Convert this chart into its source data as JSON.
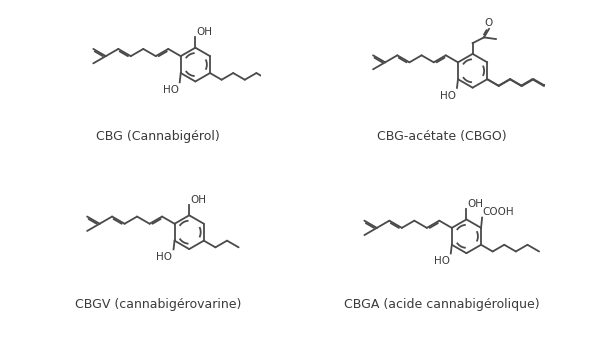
{
  "background_color": "#ffffff",
  "text_color": "#3a3a3a",
  "line_color": "#4a4a4a",
  "line_width": 1.3,
  "labels": {
    "cbg": "CBG (Cannabigérol)",
    "cbgo": "CBG-acétate (CBGO)",
    "cbgv": "CBGV (cannabigérovarine)",
    "cbga": "CBGA (acide cannabigérolique)"
  },
  "label_fontsize": 9.0,
  "figsize": [
    6.0,
    3.38
  ],
  "dpi": 100
}
